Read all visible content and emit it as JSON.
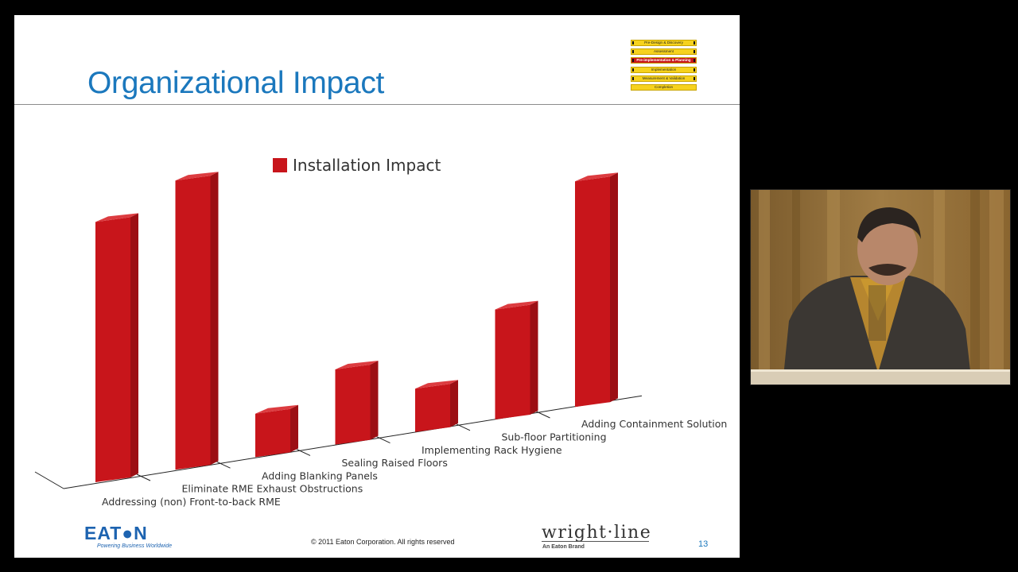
{
  "slide": {
    "title": "Organizational Impact",
    "phase_nav": [
      {
        "label": "Pre-Design & Discovery",
        "active": false
      },
      {
        "label": "Assessment",
        "active": false
      },
      {
        "label": "Pre-implementation & Planning",
        "active": true
      },
      {
        "label": "Implementation",
        "active": false
      },
      {
        "label": "Measurement & Validation",
        "active": false
      },
      {
        "label": "Completion",
        "active": false
      }
    ],
    "copyright": "©  2011 Eaton Corporation. All rights reserved",
    "eaton_logo": "EAT●N",
    "eaton_tagline": "Powering Business Worldwide",
    "wrightline_logo": "wright·line",
    "wrightline_tagline": "An Eaton Brand",
    "page_number": "13"
  },
  "chart_data": {
    "type": "bar",
    "categories": [
      "Addressing (non) Front-to-back RME",
      "Eliminate RME Exhaust Obstructions",
      "Adding Blanking Panels",
      "Sealing Raised Floors",
      "Implementing Rack Hygiene",
      "Sub-floor Partitioning",
      "Adding Containment Solution"
    ],
    "series": [
      {
        "name": "Installation Impact",
        "values": [
          9,
          10,
          1.5,
          2.6,
          1.5,
          3.8,
          7.8
        ],
        "color": "#c8151b"
      }
    ],
    "ylim": [
      0,
      10
    ],
    "grid": false,
    "legend": "top-center",
    "three_d": true
  },
  "colors": {
    "title_blue": "#1b78bd",
    "bar_front": "#c8151b",
    "bar_side": "#9c0f14",
    "bar_top": "#dc3c40",
    "eaton_blue": "#1d63b0"
  }
}
